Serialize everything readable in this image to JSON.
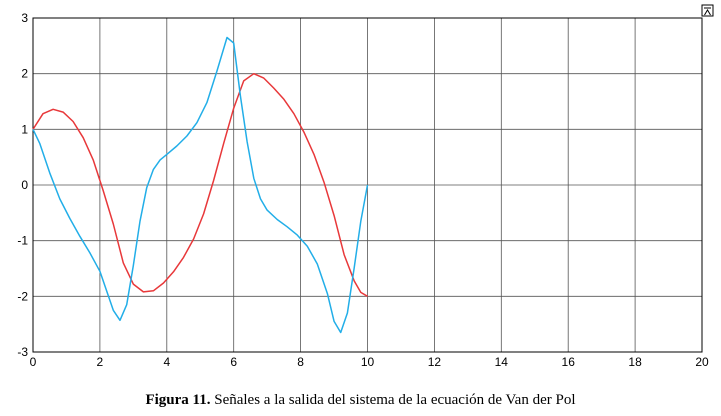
{
  "caption": {
    "label": "Figura 11.",
    "text": "Señales a la salida del sistema de la ecuación de Van der Pol"
  },
  "chart_data": {
    "type": "line",
    "title": "",
    "xlabel": "",
    "ylabel": "",
    "xlim": [
      0,
      20
    ],
    "ylim": [
      -3,
      3
    ],
    "xticks": [
      0,
      2,
      4,
      6,
      8,
      10,
      12,
      14,
      16,
      18,
      20
    ],
    "yticks": [
      -3,
      -2,
      -1,
      0,
      1,
      2,
      3
    ],
    "grid": true,
    "series": [
      {
        "color": "#e8383a",
        "x": [
          0,
          0.3,
          0.6,
          0.9,
          1.2,
          1.5,
          1.8,
          2.1,
          2.4,
          2.7,
          3.0,
          3.3,
          3.6,
          3.9,
          4.2,
          4.5,
          4.8,
          5.1,
          5.4,
          5.7,
          6.0,
          6.3,
          6.6,
          6.9,
          7.2,
          7.5,
          7.8,
          8.1,
          8.4,
          8.7,
          9.0,
          9.3,
          9.6,
          9.8,
          10.0
        ],
        "y": [
          1.0,
          1.28,
          1.36,
          1.31,
          1.14,
          0.85,
          0.45,
          -0.1,
          -0.7,
          -1.4,
          -1.78,
          -1.92,
          -1.9,
          -1.76,
          -1.56,
          -1.3,
          -0.97,
          -0.52,
          0.08,
          0.75,
          1.38,
          1.87,
          2.0,
          1.92,
          1.74,
          1.54,
          1.28,
          0.95,
          0.55,
          0.05,
          -0.55,
          -1.25,
          -1.72,
          -1.93,
          -2.0
        ]
      },
      {
        "color": "#22aee8",
        "x": [
          0,
          0.2,
          0.5,
          0.8,
          1.1,
          1.4,
          1.7,
          2.0,
          2.2,
          2.4,
          2.6,
          2.8,
          3.0,
          3.2,
          3.4,
          3.6,
          3.8,
          4.0,
          4.3,
          4.6,
          4.9,
          5.2,
          5.5,
          5.8,
          6.0,
          6.2,
          6.4,
          6.6,
          6.8,
          7.0,
          7.3,
          7.6,
          7.9,
          8.2,
          8.5,
          8.8,
          9.0,
          9.2,
          9.4,
          9.6,
          9.8,
          10.0
        ],
        "y": [
          1.0,
          0.75,
          0.22,
          -0.25,
          -0.6,
          -0.92,
          -1.22,
          -1.55,
          -1.9,
          -2.25,
          -2.43,
          -2.15,
          -1.45,
          -0.65,
          -0.05,
          0.28,
          0.45,
          0.55,
          0.7,
          0.88,
          1.12,
          1.48,
          2.05,
          2.65,
          2.55,
          1.6,
          0.78,
          0.12,
          -0.25,
          -0.45,
          -0.62,
          -0.75,
          -0.9,
          -1.1,
          -1.42,
          -1.95,
          -2.45,
          -2.65,
          -2.3,
          -1.5,
          -0.65,
          0.0
        ]
      }
    ]
  }
}
